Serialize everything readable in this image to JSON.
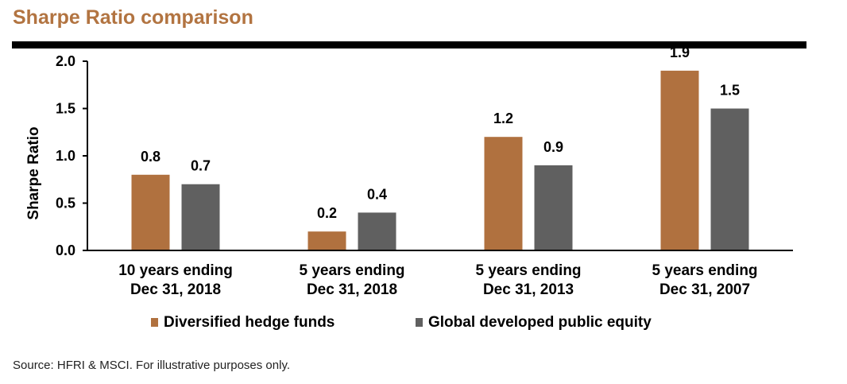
{
  "title": "Sharpe Ratio comparison",
  "source": "Source: HFRI & MSCI. For illustrative purposes only.",
  "colors": {
    "title": "#b27441",
    "hedge": "#b0713f",
    "equity": "#606060"
  },
  "chart_data": {
    "type": "bar",
    "ylabel": "Sharpe Ratio",
    "xlabel": "",
    "ylim": [
      0,
      2.0
    ],
    "yticks": [
      "0.0",
      "0.5",
      "1.0",
      "1.5",
      "2.0"
    ],
    "grid": false,
    "legend_position": "bottom",
    "categories": [
      [
        "10 years ending",
        "Dec 31, 2018"
      ],
      [
        "5 years ending",
        "Dec 31, 2018"
      ],
      [
        "5 years ending",
        "Dec 31, 2013"
      ],
      [
        "5 years ending",
        "Dec 31, 2007"
      ]
    ],
    "series": [
      {
        "name": "Diversified hedge funds",
        "values": [
          0.8,
          0.2,
          1.2,
          1.9
        ],
        "labels": [
          "0.8",
          "0.2",
          "1.2",
          "1.9"
        ],
        "color": "#b0713f"
      },
      {
        "name": "Global developed public equity",
        "values": [
          0.7,
          0.4,
          0.9,
          1.5
        ],
        "labels": [
          "0.7",
          "0.4",
          "0.9",
          "1.5"
        ],
        "color": "#606060"
      }
    ]
  }
}
